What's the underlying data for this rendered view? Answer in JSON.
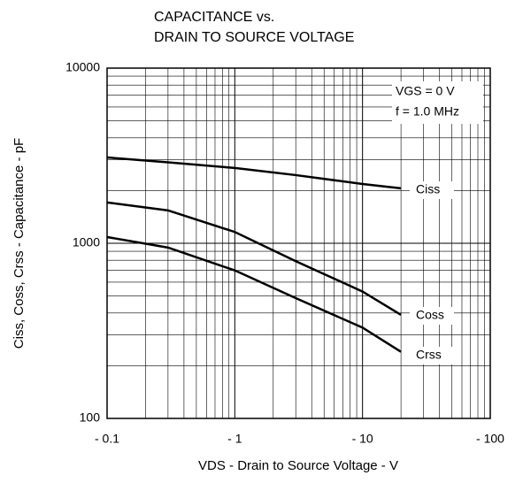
{
  "chart_data": {
    "type": "line",
    "title": [
      "CAPACITANCE vs.",
      "DRAIN TO SOURCE VOLTAGE"
    ],
    "x_label": "VDS - Drain to Source Voltage - V",
    "y_label": "Ciss, Coss, Crss - Capacitance - pF",
    "annotations": [
      "VGS = 0 V",
      "f = 1.0 MHz"
    ],
    "log_x": true,
    "log_y": true,
    "grid": true,
    "minor_grid": true,
    "xlim": [
      0.1,
      100
    ],
    "ylim": [
      100,
      10000
    ],
    "xticks": [
      {
        "value": 0.1,
        "label": "- 0.1"
      },
      {
        "value": 1,
        "label": "- 1"
      },
      {
        "value": 10,
        "label": "- 10"
      },
      {
        "value": 100,
        "label": "- 100"
      }
    ],
    "yticks": [
      100,
      1000,
      10000
    ],
    "x": [
      0.1,
      0.3,
      1,
      3,
      10,
      20
    ],
    "series": [
      {
        "name": "Ciss",
        "color": "#000000",
        "values": [
          3090,
          2900,
          2690,
          2450,
          2180,
          2060
        ]
      },
      {
        "name": "Coss",
        "color": "#000000",
        "values": [
          1710,
          1540,
          1160,
          790,
          530,
          390
        ]
      },
      {
        "name": "Crss",
        "color": "#000000",
        "values": [
          1085,
          945,
          700,
          486,
          330,
          240
        ]
      }
    ]
  }
}
